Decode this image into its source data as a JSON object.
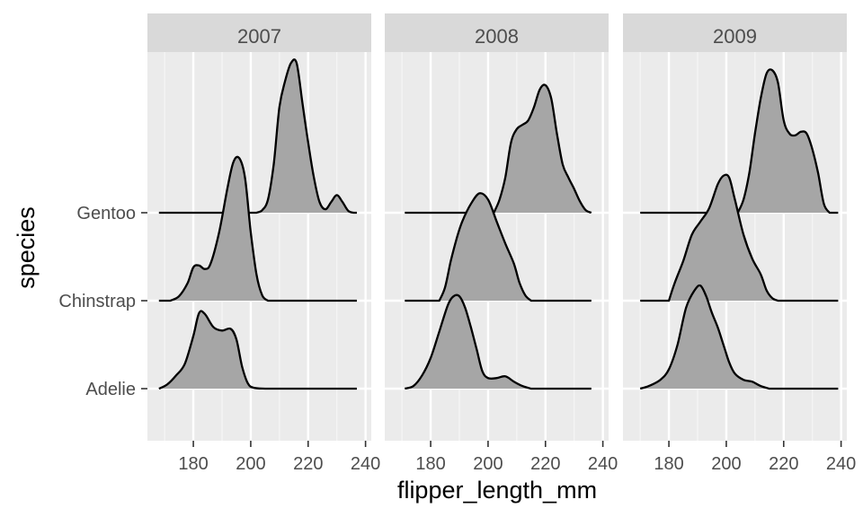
{
  "chart_data": {
    "type": "ridgeline",
    "xlabel": "flipper_length_mm",
    "ylabel": "species",
    "xlim": [
      164,
      242
    ],
    "x_ticks": [
      180,
      200,
      220,
      240
    ],
    "facets": [
      "2007",
      "2008",
      "2009"
    ],
    "species": [
      "Adelie",
      "Chinstrap",
      "Gentoo"
    ],
    "grid": true,
    "fill_color": "#a6a6a6",
    "panel_color": "#ebebeb",
    "strip_color": "#d9d9d9",
    "series": [
      {
        "facet": "2007",
        "ridges": [
          {
            "species": "Adelie",
            "x_start": 168,
            "x_end": 237,
            "points": [
              [
                168,
                0
              ],
              [
                171,
                0.05
              ],
              [
                174,
                0.15
              ],
              [
                177,
                0.28
              ],
              [
                180,
                0.6
              ],
              [
                182,
                0.86
              ],
              [
                184,
                0.85
              ],
              [
                187,
                0.7
              ],
              [
                190,
                0.66
              ],
              [
                193,
                0.68
              ],
              [
                195,
                0.56
              ],
              [
                197,
                0.25
              ],
              [
                199,
                0.06
              ],
              [
                201,
                0.01
              ],
              [
                205,
                0
              ]
            ]
          },
          {
            "species": "Chinstrap",
            "x_start": 168,
            "x_end": 237,
            "points": [
              [
                172,
                0
              ],
              [
                175,
                0.05
              ],
              [
                178,
                0.2
              ],
              [
                180,
                0.38
              ],
              [
                182,
                0.4
              ],
              [
                184,
                0.36
              ],
              [
                186,
                0.42
              ],
              [
                189,
                0.78
              ],
              [
                192,
                1.3
              ],
              [
                194,
                1.58
              ],
              [
                196,
                1.62
              ],
              [
                198,
                1.4
              ],
              [
                200,
                0.78
              ],
              [
                202,
                0.3
              ],
              [
                204,
                0.06
              ],
              [
                206,
                0
              ]
            ]
          },
          {
            "species": "Gentoo",
            "x_start": 168,
            "x_end": 237,
            "points": [
              [
                202,
                0
              ],
              [
                204,
                0.03
              ],
              [
                206,
                0.15
              ],
              [
                208,
                0.55
              ],
              [
                210,
                1.2
              ],
              [
                212,
                1.5
              ],
              [
                214,
                1.7
              ],
              [
                216,
                1.7
              ],
              [
                218,
                1.25
              ],
              [
                220,
                0.8
              ],
              [
                222,
                0.4
              ],
              [
                224,
                0.12
              ],
              [
                226,
                0.04
              ],
              [
                228,
                0.12
              ],
              [
                230,
                0.2
              ],
              [
                232,
                0.12
              ],
              [
                234,
                0.02
              ],
              [
                236,
                0
              ]
            ]
          }
        ]
      },
      {
        "facet": "2008",
        "ridges": [
          {
            "species": "Adelie",
            "x_start": 171,
            "x_end": 236,
            "points": [
              [
                171,
                0
              ],
              [
                174,
                0.03
              ],
              [
                177,
                0.15
              ],
              [
                180,
                0.35
              ],
              [
                183,
                0.65
              ],
              [
                186,
                0.95
              ],
              [
                188,
                1.05
              ],
              [
                190,
                1.05
              ],
              [
                192,
                0.92
              ],
              [
                194,
                0.7
              ],
              [
                196,
                0.45
              ],
              [
                198,
                0.2
              ],
              [
                200,
                0.12
              ],
              [
                203,
                0.12
              ],
              [
                206,
                0.14
              ],
              [
                209,
                0.08
              ],
              [
                212,
                0.03
              ],
              [
                215,
                0
              ]
            ]
          },
          {
            "species": "Chinstrap",
            "x_start": 171,
            "x_end": 236,
            "points": [
              [
                183,
                0
              ],
              [
                185,
                0.15
              ],
              [
                187,
                0.45
              ],
              [
                189,
                0.7
              ],
              [
                191,
                0.9
              ],
              [
                194,
                1.1
              ],
              [
                197,
                1.22
              ],
              [
                200,
                1.15
              ],
              [
                203,
                0.9
              ],
              [
                206,
                0.65
              ],
              [
                209,
                0.42
              ],
              [
                211,
                0.2
              ],
              [
                213,
                0.06
              ],
              [
                215,
                0
              ]
            ]
          },
          {
            "species": "Gentoo",
            "x_start": 171,
            "x_end": 236,
            "points": [
              [
                202,
                0
              ],
              [
                204,
                0.15
              ],
              [
                206,
                0.4
              ],
              [
                208,
                0.8
              ],
              [
                210,
                0.95
              ],
              [
                212,
                1.0
              ],
              [
                214,
                1.05
              ],
              [
                216,
                1.2
              ],
              [
                218,
                1.4
              ],
              [
                220,
                1.45
              ],
              [
                222,
                1.3
              ],
              [
                224,
                0.9
              ],
              [
                226,
                0.55
              ],
              [
                228,
                0.4
              ],
              [
                230,
                0.27
              ],
              [
                232,
                0.13
              ],
              [
                234,
                0.03
              ],
              [
                236,
                0
              ]
            ]
          }
        ]
      },
      {
        "facet": "2009",
        "ridges": [
          {
            "species": "Adelie",
            "x_start": 170,
            "x_end": 239,
            "points": [
              [
                170,
                0
              ],
              [
                173,
                0.03
              ],
              [
                177,
                0.1
              ],
              [
                180,
                0.22
              ],
              [
                183,
                0.5
              ],
              [
                186,
                0.92
              ],
              [
                189,
                1.12
              ],
              [
                191,
                1.17
              ],
              [
                193,
                1.05
              ],
              [
                195,
                0.86
              ],
              [
                197,
                0.7
              ],
              [
                199,
                0.5
              ],
              [
                201,
                0.3
              ],
              [
                203,
                0.17
              ],
              [
                206,
                0.1
              ],
              [
                209,
                0.08
              ],
              [
                212,
                0.03
              ],
              [
                215,
                0
              ]
            ]
          },
          {
            "species": "Chinstrap",
            "x_start": 170,
            "x_end": 239,
            "points": [
              [
                180,
                0
              ],
              [
                182,
                0.2
              ],
              [
                185,
                0.45
              ],
              [
                188,
                0.75
              ],
              [
                191,
                0.9
              ],
              [
                194,
                1.05
              ],
              [
                197,
                1.32
              ],
              [
                199,
                1.42
              ],
              [
                201,
                1.4
              ],
              [
                203,
                1.15
              ],
              [
                206,
                0.75
              ],
              [
                209,
                0.48
              ],
              [
                212,
                0.3
              ],
              [
                214,
                0.12
              ],
              [
                216,
                0.03
              ],
              [
                218,
                0
              ]
            ]
          },
          {
            "species": "Gentoo",
            "x_start": 170,
            "x_end": 239,
            "points": [
              [
                204,
                0
              ],
              [
                206,
                0.15
              ],
              [
                208,
                0.45
              ],
              [
                210,
                0.9
              ],
              [
                212,
                1.3
              ],
              [
                214,
                1.58
              ],
              [
                216,
                1.62
              ],
              [
                218,
                1.48
              ],
              [
                220,
                1.05
              ],
              [
                222,
                0.9
              ],
              [
                224,
                0.88
              ],
              [
                226,
                0.92
              ],
              [
                228,
                0.9
              ],
              [
                230,
                0.72
              ],
              [
                232,
                0.45
              ],
              [
                234,
                0.1
              ],
              [
                236,
                0
              ]
            ]
          }
        ]
      }
    ]
  }
}
